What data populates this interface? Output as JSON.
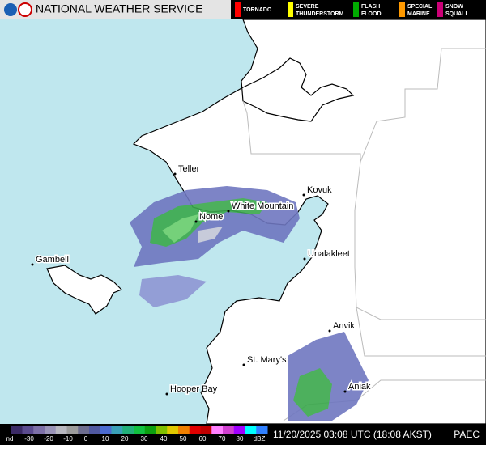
{
  "header": {
    "title": "NATIONAL WEATHER SERVICE"
  },
  "warnings": [
    {
      "lines": [
        "TORNADO"
      ]
    },
    {
      "lines": [
        "SEVERE",
        "THUNDERSTORM"
      ]
    },
    {
      "lines": [
        "FLASH",
        "FLOOD"
      ]
    },
    {
      "lines": [
        "SPECIAL",
        "MARINE"
      ]
    },
    {
      "lines": [
        "SNOW",
        "SQUALL"
      ]
    }
  ],
  "places": [
    "Teller",
    "Kovuk",
    "White Mountain",
    "Nome",
    "Gambell",
    "Unalakleet",
    "Anvik",
    "St. Mary's",
    "Aniak",
    "Hooper Bay"
  ],
  "scale": {
    "labels": [
      "nd",
      "-30",
      "-20",
      "-10",
      "0",
      "10",
      "20",
      "30",
      "40",
      "50",
      "60",
      "70",
      "80",
      "dBZ"
    ]
  },
  "footer": {
    "timestamp": "11/20/2025 03:08 UTC (18:08 AKST)",
    "station": "PAEC"
  }
}
